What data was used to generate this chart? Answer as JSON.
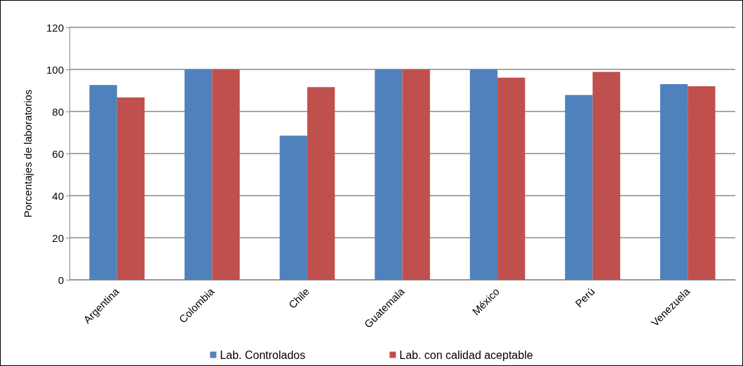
{
  "chart_data": {
    "type": "bar",
    "ylabel": "Porcentajes de laboratorios",
    "categories": [
      "Argentina",
      "Colombia",
      "Chile",
      "Guatemala",
      "México",
      "Perú",
      "Venezuela"
    ],
    "series": [
      {
        "name": "Lab. Controlados",
        "color": "#4f81bd",
        "values": [
          92.6,
          100,
          68.5,
          100,
          100,
          87.8,
          93.0
        ]
      },
      {
        "name": "Lab. con calidad aceptable",
        "color": "#c0504d",
        "values": [
          86.7,
          100,
          91.6,
          100,
          96.1,
          98.8,
          92.0
        ]
      }
    ],
    "ylim": [
      0,
      120
    ],
    "yticks": [
      0,
      20,
      40,
      60,
      80,
      100,
      120
    ],
    "grid": "y",
    "legend": "bottom"
  }
}
